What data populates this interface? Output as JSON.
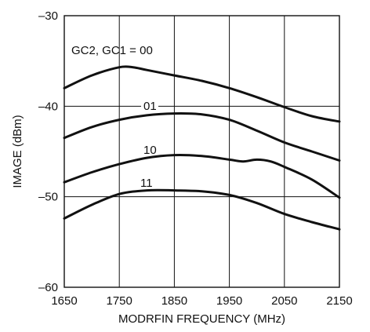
{
  "chart_data": {
    "type": "line",
    "xlabel": "MODRFIN FREQUENCY (MHz)",
    "ylabel": "IMAGE (dBm)",
    "xlim": [
      1650,
      2150
    ],
    "ylim": [
      -60,
      -30
    ],
    "xticks": [
      1650,
      1750,
      1850,
      1950,
      2050,
      2150
    ],
    "yticks": [
      -30,
      -40,
      -50,
      -60
    ],
    "xtick_labels": [
      "1650",
      "1750",
      "1850",
      "1950",
      "2050",
      "2150"
    ],
    "ytick_labels": [
      "–30",
      "–40",
      "–50",
      "–60"
    ],
    "grid": true,
    "series": [
      {
        "name": "GC2, GC1 = 00",
        "x": [
          1650,
          1700,
          1750,
          1775,
          1800,
          1850,
          1900,
          1950,
          2000,
          2050,
          2100,
          2150
        ],
        "y": [
          -38.0,
          -36.6,
          -35.7,
          -35.7,
          -36.0,
          -36.6,
          -37.2,
          -38.0,
          -39.0,
          -40.1,
          -41.1,
          -41.7
        ]
      },
      {
        "name": "01",
        "x": [
          1650,
          1700,
          1750,
          1800,
          1850,
          1900,
          1950,
          2000,
          2050,
          2100,
          2150
        ],
        "y": [
          -43.5,
          -42.3,
          -41.5,
          -41.0,
          -40.8,
          -40.9,
          -41.5,
          -42.7,
          -44.0,
          -45.0,
          -46.0
        ]
      },
      {
        "name": "10",
        "x": [
          1650,
          1700,
          1750,
          1800,
          1850,
          1900,
          1950,
          1975,
          2000,
          2025,
          2050,
          2100,
          2150
        ],
        "y": [
          -48.4,
          -47.3,
          -46.4,
          -45.7,
          -45.4,
          -45.5,
          -45.9,
          -46.1,
          -45.9,
          -46.1,
          -46.7,
          -48.1,
          -50.1
        ]
      },
      {
        "name": "11",
        "x": [
          1650,
          1700,
          1750,
          1800,
          1850,
          1900,
          1950,
          2000,
          2050,
          2100,
          2150
        ],
        "y": [
          -52.4,
          -50.9,
          -49.7,
          -49.3,
          -49.3,
          -49.4,
          -49.8,
          -50.7,
          -51.9,
          -52.8,
          -53.6
        ]
      }
    ],
    "annotations": [
      {
        "text": "GC2, GC1 = 00",
        "series": 0
      },
      {
        "text": "01",
        "series": 1
      },
      {
        "text": "10",
        "series": 2
      },
      {
        "text": "11",
        "series": 3
      }
    ]
  }
}
